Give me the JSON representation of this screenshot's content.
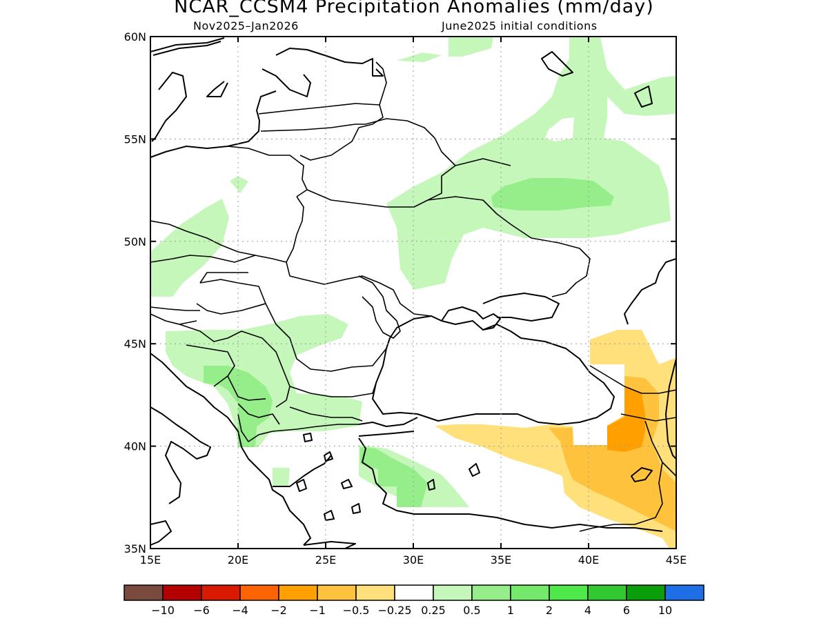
{
  "title": "NCAR_CCSM4 Precipitation Anomalies (mm/day)",
  "subtitle_left": "Nov2025–Jan2026",
  "subtitle_right": "June2025 initial conditions",
  "map": {
    "lon_range": [
      15,
      45
    ],
    "lat_range": [
      35,
      60
    ],
    "lon_ticks": [
      {
        "value": 15,
        "label": "15E"
      },
      {
        "value": 20,
        "label": "20E"
      },
      {
        "value": 25,
        "label": "25E"
      },
      {
        "value": 30,
        "label": "30E"
      },
      {
        "value": 35,
        "label": "35E"
      },
      {
        "value": 40,
        "label": "40E"
      },
      {
        "value": 45,
        "label": "45E"
      }
    ],
    "lat_ticks": [
      {
        "value": 35,
        "label": "35N"
      },
      {
        "value": 40,
        "label": "40N"
      },
      {
        "value": 45,
        "label": "45N"
      },
      {
        "value": 50,
        "label": "50N"
      },
      {
        "value": 55,
        "label": "55N"
      },
      {
        "value": 60,
        "label": "60N"
      }
    ],
    "grid": "dotted"
  },
  "colorbar": {
    "colors": [
      "#7a4a3e",
      "#b40000",
      "#d91a00",
      "#ff6400",
      "#ffa000",
      "#ffc23c",
      "#ffe07a",
      "#ffffff",
      "#c4f7b9",
      "#96ee8a",
      "#74e86a",
      "#4ee84a",
      "#32c832",
      "#0a9e0a",
      "#1e6ee6"
    ],
    "labels": [
      "−10",
      "−6",
      "−4",
      "−2",
      "−1",
      "−0.5",
      "−0.25",
      "0.25",
      "0.5",
      "1",
      "2",
      "4",
      "6",
      "10"
    ]
  },
  "anomaly_regions": [
    {
      "level": "0.25 to 0.5",
      "area": "Northern Russia around 55–60N, 32–45E",
      "color": "#c4f7b9"
    },
    {
      "level": "0.5 to 1",
      "area": "Central Russia near 52N, 36–41E",
      "color": "#96ee8a"
    },
    {
      "level": "0.25 to 0.5",
      "area": "Ukraine and western Russia 48–53N",
      "color": "#c4f7b9"
    },
    {
      "level": "0.25 to 0.5",
      "area": "Balkans and Carpathians",
      "color": "#c4f7b9"
    },
    {
      "level": "0.5 to 1",
      "area": "Western Balkans and western Turkey",
      "color": "#96ee8a"
    },
    {
      "level": "-0.5 to -0.25",
      "area": "Eastern Turkey and Caucasus",
      "color": "#ffe07a"
    },
    {
      "level": "-1 to -0.5",
      "area": "Eastern Anatolia",
      "color": "#ffc23c"
    },
    {
      "level": "-2 to -1",
      "area": "Georgia and NE Turkey",
      "color": "#ffa000"
    }
  ]
}
